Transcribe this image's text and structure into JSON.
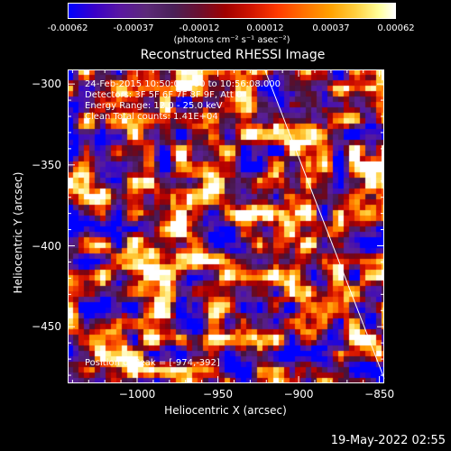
{
  "colorbar": {
    "tick_labels": [
      "-0.00062",
      "-0.00037",
      "-0.00012",
      "0.00012",
      "0.00037",
      "0.00062"
    ],
    "unit": "(photons cm⁻² s⁻¹ asec⁻²)"
  },
  "plot": {
    "title": "Reconstructed RHESSI Image",
    "info_lines": [
      "24-Feb-2015 10:50:08.000 to 10:56:08.000",
      "Detectors: 3F 5F 6F 7F 8F 9F, Att 0",
      "Energy Range: 12.0 - 25.0 keV",
      "Clean     Total counts: 1.41E+04"
    ],
    "peak_label": "Position of Peak = [-974,-392]"
  },
  "footer": {
    "timestamp": "19-May-2022 02:55"
  },
  "chart_data": {
    "type": "heatmap",
    "title": "Reconstructed RHESSI Image",
    "xlabel": "Heliocentric X (arcsec)",
    "ylabel": "Heliocentric Y (arcsec)",
    "xlim": [
      -1043,
      -847
    ],
    "ylim": [
      -485,
      -291
    ],
    "x_ticks": [
      -1000,
      -950,
      -900,
      -850
    ],
    "y_ticks": [
      -300,
      -350,
      -400,
      -450
    ],
    "x_tick_labels": [
      "−1000",
      "−950",
      "−900",
      "−850"
    ],
    "y_tick_labels": [
      "−300",
      "−350",
      "−400",
      "−450"
    ],
    "colorbar_range": [
      -0.00062,
      0.00062
    ],
    "peak_position": [
      -974,
      -392
    ],
    "limb_line": [
      [
        -921,
        -291
      ],
      [
        -847,
        -482
      ]
    ],
    "grid": false
  }
}
